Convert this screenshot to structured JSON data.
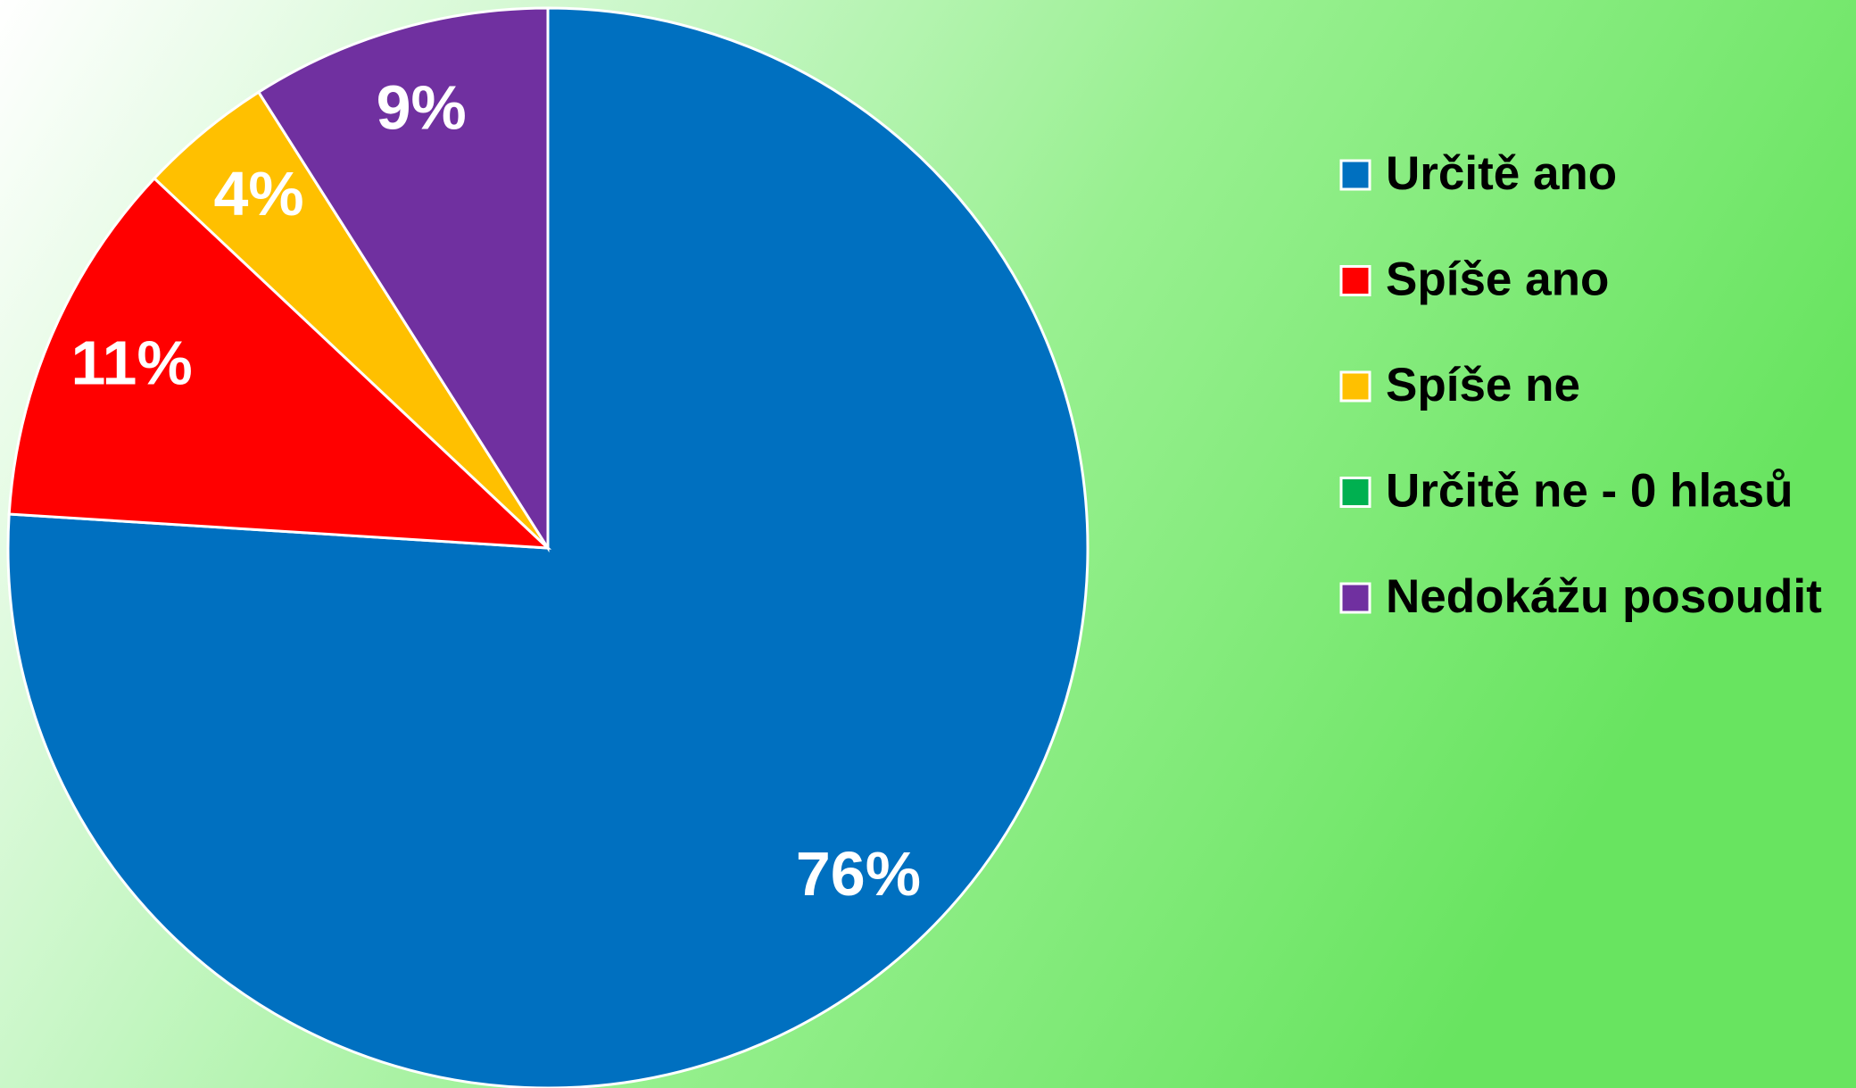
{
  "chart_data": {
    "type": "pie",
    "categories": [
      "Určitě ano",
      "Spíše ano",
      "Spíše ne",
      "Určitě ne - 0 hlasů",
      "Nedokážu posoudit"
    ],
    "values": [
      76,
      11,
      4,
      0,
      9
    ],
    "value_labels": [
      "76%",
      "11%",
      "4%",
      null,
      "9%"
    ],
    "colors": [
      "#0070c0",
      "#ff0000",
      "#ffc000",
      "#00b050",
      "#7030a0"
    ]
  }
}
